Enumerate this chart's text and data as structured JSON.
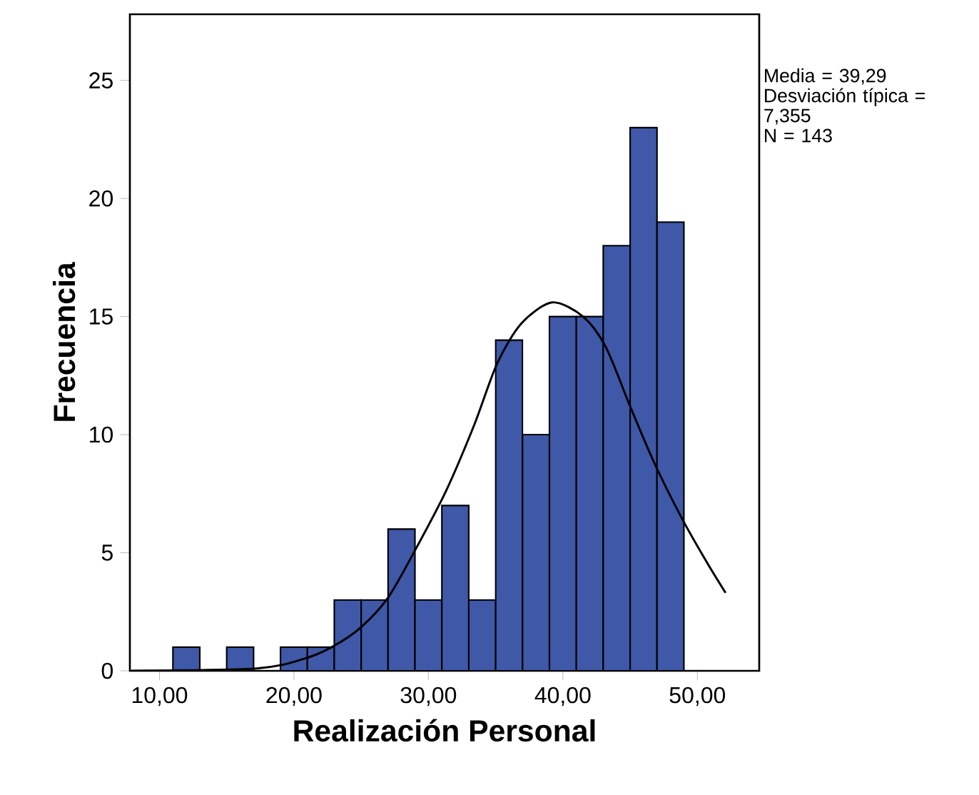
{
  "chart_data": {
    "type": "histogram",
    "xlabel": "Realización Personal",
    "ylabel": "Frecuencia",
    "bins": [
      11,
      13,
      15,
      17,
      19,
      21,
      23,
      25,
      27,
      29,
      31,
      33,
      35,
      37,
      39,
      41,
      43,
      45,
      47,
      49
    ],
    "values": [
      1,
      0,
      1,
      0,
      1,
      1,
      3,
      3,
      6,
      3,
      7,
      3,
      14,
      10,
      15,
      15,
      18,
      23,
      19
    ],
    "color": "#3f58a8",
    "series": [
      {
        "type": "line",
        "color": "#000000",
        "x": [
          7.9,
          17.2,
          20.7,
          22.8,
          24.9,
          27.0,
          29.1,
          31.3,
          33.4,
          35.1,
          36.9,
          39.2,
          41.5,
          43.2,
          45.0,
          46.8,
          48.9,
          50.7,
          52.1
        ],
        "values": [
          0,
          0.1,
          0.5,
          1.0,
          1.8,
          3.1,
          5.2,
          7.6,
          10.4,
          13.0,
          14.7,
          15.6,
          15.0,
          13.7,
          11.2,
          8.8,
          6.4,
          4.6,
          3.3
        ]
      }
    ],
    "xlim": [
      7.8,
      54.6
    ],
    "ylim": [
      0,
      27.8
    ],
    "xticks": [
      {
        "value": 10,
        "label": "10,00"
      },
      {
        "value": 20,
        "label": "20,00"
      },
      {
        "value": 30,
        "label": "30,00"
      },
      {
        "value": 40,
        "label": "40,00"
      },
      {
        "value": 50,
        "label": "50,00"
      }
    ],
    "yticks": [
      0,
      5,
      10,
      15,
      20,
      25
    ],
    "annotations": [
      "Media = 39,29",
      "Desviación típica = 7,355",
      "N = 143"
    ]
  }
}
